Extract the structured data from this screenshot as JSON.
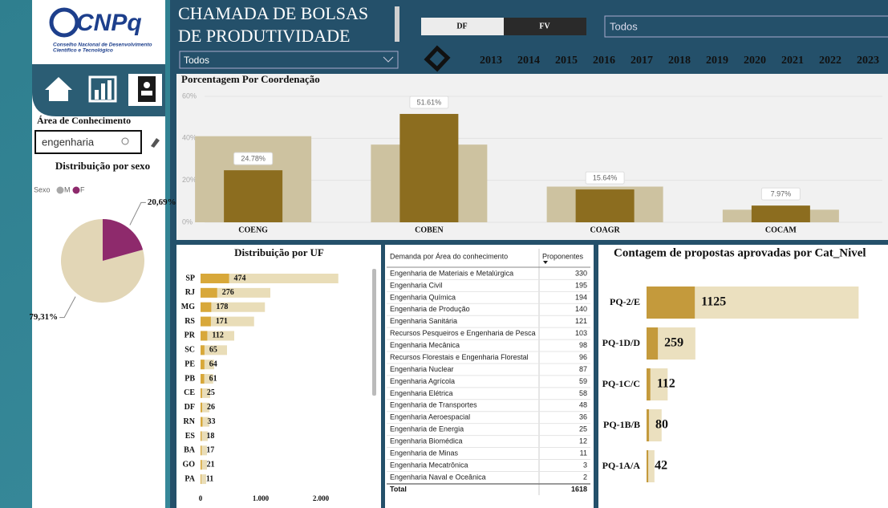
{
  "logo": {
    "name": "CNPq",
    "subtitle_line1": "Conselho Nacional de Desenvolvimento",
    "subtitle_line2": "Científico e Tecnológico"
  },
  "header": {
    "title_line1": "CHAMADA DE BOLSAS",
    "title_line2": "DE PRODUTIVIDADE",
    "filter": "Todos",
    "toggle": [
      "DF",
      "FV"
    ],
    "dropdown": "Todos",
    "years": [
      "2013",
      "2014",
      "2015",
      "2016",
      "2017",
      "2018",
      "2019",
      "2020",
      "2021",
      "2022",
      "2023"
    ]
  },
  "sidebar": {
    "search_label": "Área de Conhecimento",
    "search_value": "engenharia"
  },
  "chart_data": [
    {
      "type": "bar",
      "title": "Porcentagem Por Coordenação",
      "categories": [
        "COENG",
        "COBEN",
        "COAGR",
        "COCAM"
      ],
      "series": [
        {
          "color": "#cdc2a0",
          "values": [
            41,
            37,
            17,
            6
          ]
        },
        {
          "color": "#8c6d1f",
          "values": [
            24.78,
            51.61,
            15.64,
            7.97
          ],
          "value_labels": [
            "24.78%",
            "51.61%",
            "15.64%",
            "7.97%"
          ]
        }
      ],
      "ylim": [
        0,
        60
      ],
      "yticks": [
        {
          "value": 0,
          "label": "0%"
        },
        {
          "value": 20,
          "label": "20%"
        },
        {
          "value": 40,
          "label": "40%"
        },
        {
          "value": 60,
          "label": "60%"
        }
      ]
    },
    {
      "type": "pie",
      "title": "Distribuição por sexo",
      "legend_title": "Sexo",
      "categories": [
        "M",
        "F"
      ],
      "values": [
        79.31,
        20.69
      ],
      "value_labels": [
        "79,31%",
        "20,69%"
      ],
      "colors": [
        "#e2d6b6",
        "#8e2a6c"
      ],
      "legend_colors": [
        "#a8a8a8",
        "#8e2a6c"
      ]
    },
    {
      "type": "hbar",
      "title": "Distribuição por UF",
      "categories": [
        "SP",
        "RJ",
        "MG",
        "RS",
        "PR",
        "SC",
        "PE",
        "PB",
        "CE",
        "DF",
        "RN",
        "ES",
        "BA",
        "GO",
        "PA"
      ],
      "series": [
        {
          "color": "#e9ddb8",
          "values": [
            2290,
            1160,
            1070,
            890,
            560,
            440,
            227,
            210,
            160,
            147,
            147,
            120,
            107,
            107,
            93
          ]
        },
        {
          "color": "#d8a83a",
          "values": [
            474,
            276,
            178,
            171,
            112,
            65,
            64,
            61,
            25,
            26,
            33,
            18,
            17,
            21,
            11
          ]
        }
      ],
      "label_series": 1,
      "xlim": [
        0,
        2300
      ],
      "xticks": [
        0,
        {
          "value": 1000,
          "label": "1.000"
        },
        {
          "value": 2000,
          "label": "2.000"
        }
      ]
    },
    {
      "type": "hbar",
      "title": "Contagem de propostas aprovadas por Cat_Nivel",
      "categories": [
        "PQ-2/E",
        "PQ-1D/D",
        "PQ-1C/C",
        "PQ-1B/B",
        "PQ-1A/A"
      ],
      "series": [
        {
          "color": "#ebe0bf",
          "values": [
            1125,
            259,
            112,
            80,
            42
          ]
        },
        {
          "color": "#c49a3c",
          "values": [
            256,
            60,
            20,
            13,
            9
          ]
        }
      ],
      "label_series": 0,
      "xlim": [
        0,
        1200
      ]
    }
  ],
  "table": {
    "columns": [
      "Demanda por Área do conhecimento",
      "Proponentes"
    ],
    "rows": [
      [
        "Engenharia de Materiais e Metalúrgica",
        330
      ],
      [
        "Engenharia Civil",
        195
      ],
      [
        "Engenharia Química",
        194
      ],
      [
        "Engenharia de Produção",
        140
      ],
      [
        "Engenharia Sanitária",
        121
      ],
      [
        "Recursos Pesqueiros e Engenharia de Pesca",
        103
      ],
      [
        "Engenharia Mecânica",
        98
      ],
      [
        "Recursos Florestais e Engenharia Florestal",
        96
      ],
      [
        "Engenharia Nuclear",
        87
      ],
      [
        "Engenharia Agrícola",
        59
      ],
      [
        "Engenharia Elétrica",
        58
      ],
      [
        "Engenharia de Transportes",
        48
      ],
      [
        "Engenharia Aeroespacial",
        36
      ],
      [
        "Engenharia de Energia",
        25
      ],
      [
        "Engenharia Biomédica",
        12
      ],
      [
        "Engenharia de Minas",
        11
      ],
      [
        "Engenharia Mecatrônica",
        3
      ],
      [
        "Engenharia Naval e Oceânica",
        2
      ]
    ],
    "total": {
      "label": "Total",
      "value": 1618
    }
  }
}
